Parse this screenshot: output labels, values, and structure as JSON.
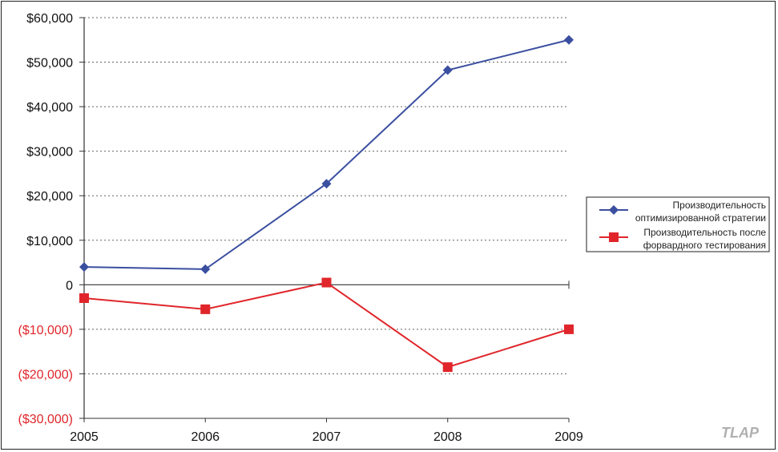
{
  "chart_data": {
    "type": "line",
    "categories": [
      "2005",
      "2006",
      "2007",
      "2008",
      "2009"
    ],
    "series": [
      {
        "name": "Производительность оптимизированной стратегии",
        "name_lines": [
          "Производительность",
          "оптимизированной стратегии"
        ],
        "values": [
          4000,
          3500,
          22700,
          48200,
          55000
        ],
        "color": "#3b4fa0",
        "marker": "diamond"
      },
      {
        "name": "Производительность после форвардного тестирования",
        "name_lines": [
          "Производительность после",
          "форвардного тестирования"
        ],
        "values": [
          -3000,
          -5500,
          500,
          -18500,
          -10000
        ],
        "color": "#e0262b",
        "marker": "square"
      }
    ],
    "y_ticks": [
      {
        "value": 60000,
        "label": "$60,000"
      },
      {
        "value": 50000,
        "label": "$50,000"
      },
      {
        "value": 40000,
        "label": "$40,000"
      },
      {
        "value": 30000,
        "label": "$30,000"
      },
      {
        "value": 20000,
        "label": "$20,000"
      },
      {
        "value": 10000,
        "label": "$10,000"
      },
      {
        "value": 0,
        "label": "0"
      },
      {
        "value": -10000,
        "label": "($10,000)"
      },
      {
        "value": -20000,
        "label": "($20,000)"
      },
      {
        "value": -30000,
        "label": "($30,000)"
      }
    ],
    "ylim": [
      -30000,
      60000
    ],
    "positive_tick_color": "#111111",
    "negative_tick_color": "#e0262b",
    "grid": true,
    "grid_style": "dotted",
    "legend_position": "right",
    "title": "",
    "xlabel": "",
    "ylabel": ""
  },
  "watermark": "TLAP"
}
